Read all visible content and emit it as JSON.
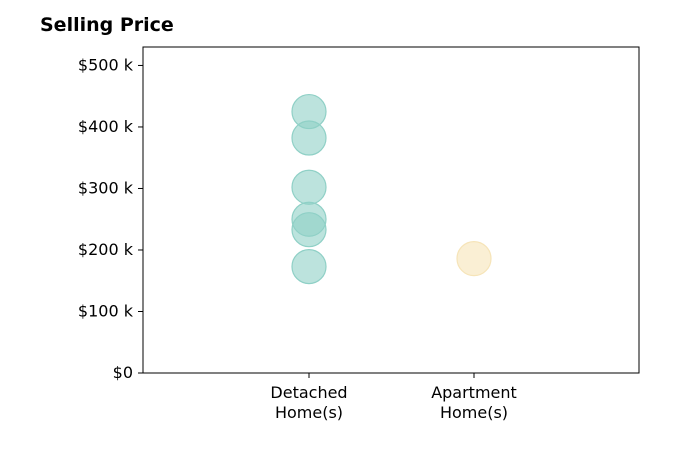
{
  "chart_data": {
    "type": "scatter",
    "title": "Selling Price",
    "xlabel": "",
    "ylabel": "",
    "categories": [
      "Detached\nHome(s)",
      "Apartment\nHome(s)"
    ],
    "ylim": [
      0,
      530000
    ],
    "yticks": [
      0,
      100000,
      200000,
      300000,
      400000,
      500000
    ],
    "ytick_labels": [
      "$0",
      "$100 k",
      "$200 k",
      "$300 k",
      "$400 k",
      "$500 k"
    ],
    "grid": false,
    "series": [
      {
        "category": "Detached\nHome(s)",
        "color": "#8fd0c6",
        "values": [
          425000,
          382000,
          302000,
          250000,
          233000,
          173000
        ]
      },
      {
        "category": "Apartment\nHome(s)",
        "color": "#f6e4b8",
        "values": [
          186000
        ]
      }
    ]
  }
}
